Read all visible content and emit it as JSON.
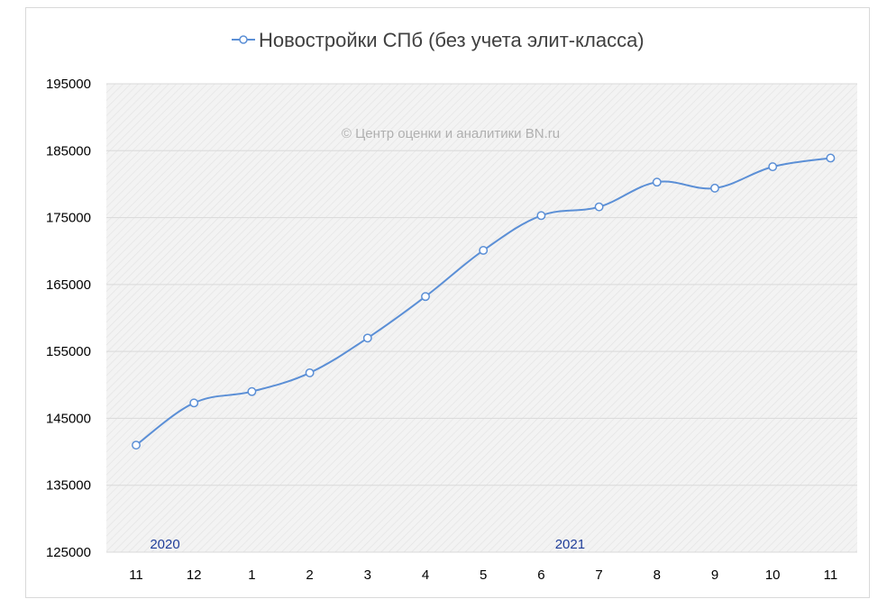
{
  "chart_data": {
    "type": "line",
    "title": "Новостройки СПб (без учета элит-класса)",
    "watermark": "© Центр оценки и аналитики BN.ru",
    "categories": [
      "11",
      "12",
      "1",
      "2",
      "3",
      "4",
      "5",
      "6",
      "7",
      "8",
      "9",
      "10",
      "11"
    ],
    "year_labels": [
      {
        "text": "2020",
        "category_index": 0
      },
      {
        "text": "2021",
        "category_index": 7
      }
    ],
    "series": [
      {
        "name": "Новостройки СПб (без учета элит-класса)",
        "color": "#5b8fd6",
        "values": [
          141000,
          147300,
          149000,
          151800,
          157000,
          163200,
          170100,
          175300,
          176600,
          180300,
          179400,
          182600,
          183900
        ]
      }
    ],
    "yticks": [
      125000,
      135000,
      145000,
      155000,
      165000,
      175000,
      185000,
      195000
    ],
    "ylim": [
      125000,
      195000
    ],
    "xlabel": "",
    "ylabel": "",
    "grid": true,
    "legend": "top"
  }
}
